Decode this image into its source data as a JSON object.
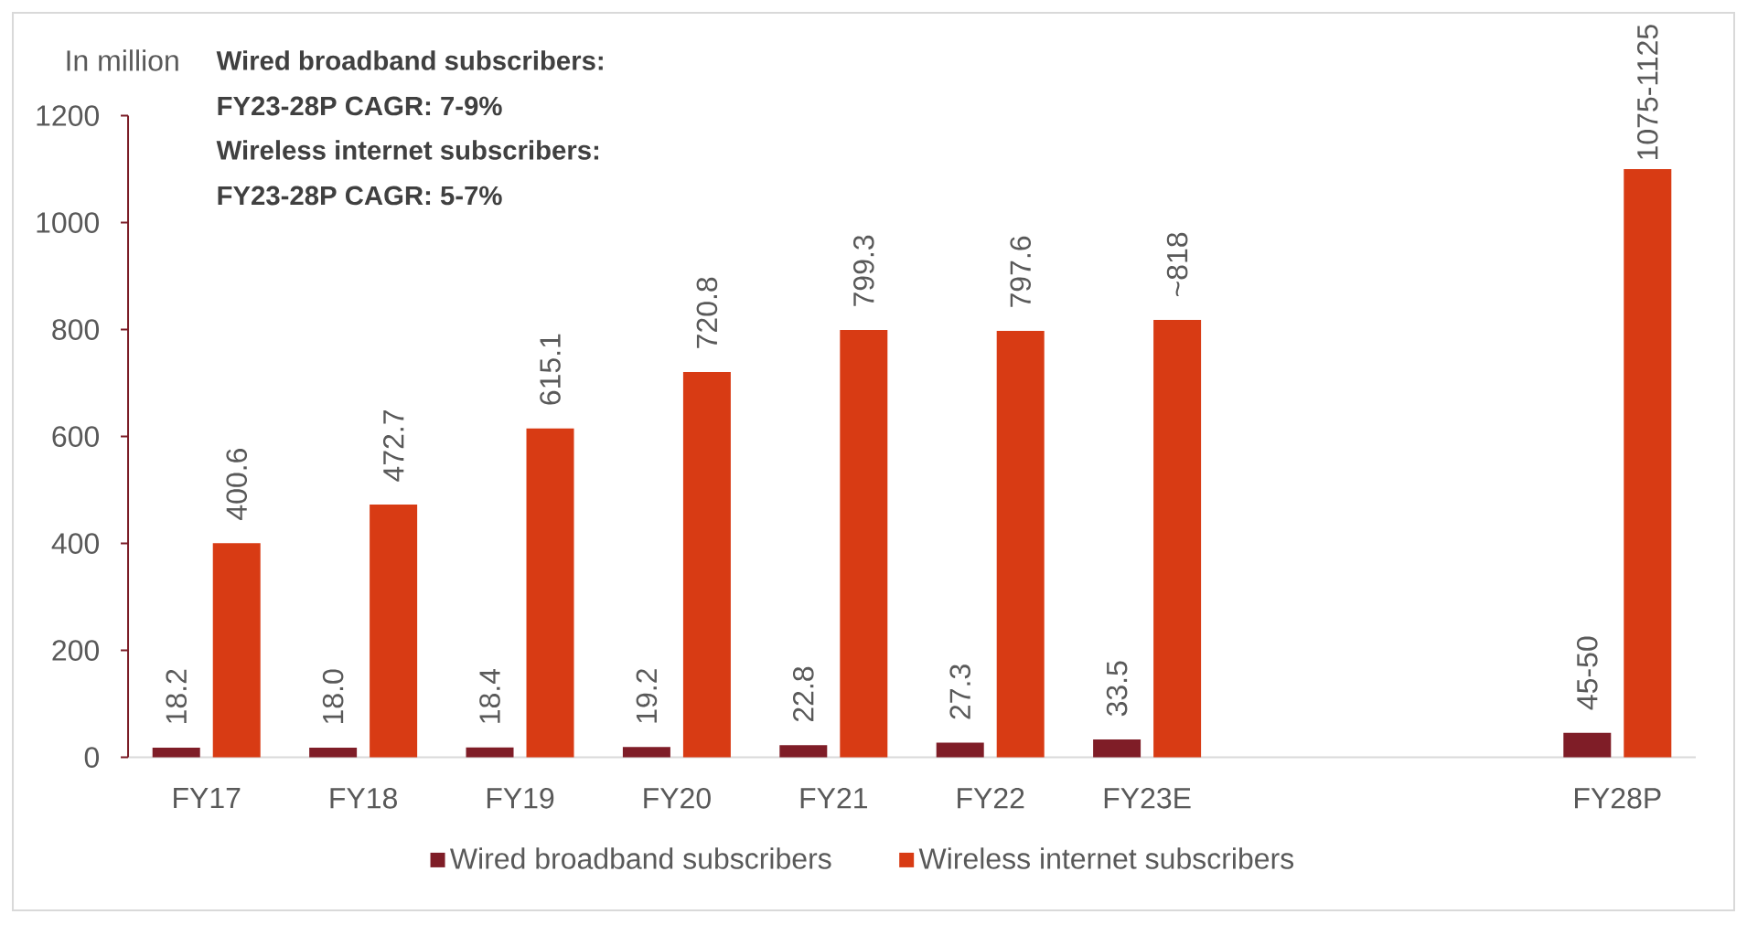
{
  "chart_data": {
    "type": "bar",
    "ylabel": "In million",
    "annotations": [
      "Wired broadband subscribers:",
      "FY23-28P CAGR: 7-9%",
      "Wireless internet subscribers:",
      "FY23-28P CAGR: 5-7%"
    ],
    "categories": [
      "FY17",
      "FY18",
      "FY19",
      "FY20",
      "FY21",
      "FY22",
      "FY23E",
      null,
      null,
      "FY28P"
    ],
    "series": [
      {
        "name": "Wired broadband subscribers",
        "color": "#7f1d27",
        "values": [
          18.2,
          18.0,
          18.4,
          19.2,
          22.8,
          27.3,
          33.5,
          null,
          null,
          46
        ],
        "value_labels": [
          "18.2",
          "18.0",
          "18.4",
          "19.2",
          "22.8",
          "27.3",
          "33.5",
          null,
          null,
          "45-50"
        ]
      },
      {
        "name": "Wireless internet subscribers",
        "color": "#d83b14",
        "values": [
          400.6,
          472.7,
          615.1,
          720.8,
          799.3,
          797.6,
          818,
          null,
          null,
          1100
        ],
        "value_labels": [
          "400.6",
          "472.7",
          "615.1",
          "720.8",
          "799.3",
          "797.6",
          "~818",
          null,
          null,
          "1075-1125"
        ]
      }
    ],
    "ylim": [
      0,
      1200
    ],
    "yticks": [
      0,
      200,
      400,
      600,
      800,
      1000,
      1200
    ],
    "legend": "bottom"
  }
}
